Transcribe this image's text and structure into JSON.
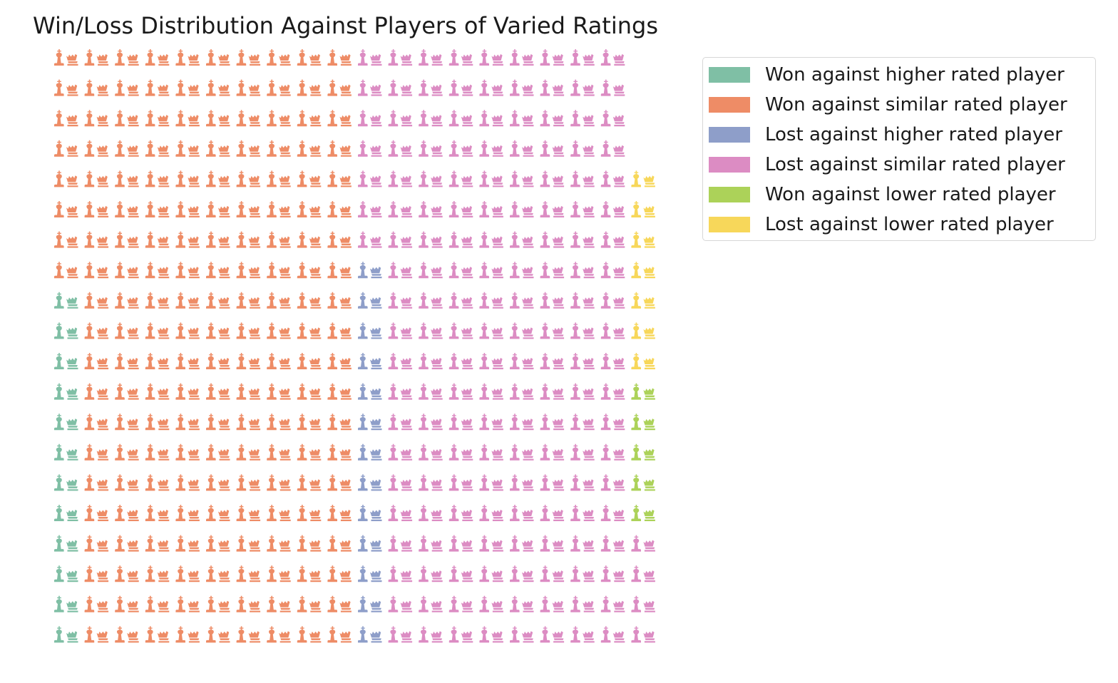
{
  "chart_data": {
    "type": "waffle",
    "title": "Win/Loss Distribution Against Players of Varied Ratings",
    "rows": 20,
    "columns": 20,
    "icon": "chess-king-and-queen-icon",
    "series": [
      {
        "name": "Won against higher rated player",
        "count": 12,
        "color": "#7fbfa5"
      },
      {
        "name": "Won against similar rated player",
        "count": 188,
        "color": "#ee8c66"
      },
      {
        "name": "Lost against higher rated player",
        "count": 13,
        "color": "#8e9ec9"
      },
      {
        "name": "Lost against similar rated player",
        "count": 171,
        "color": "#dc8cc3"
      },
      {
        "name": "Won against lower rated player",
        "count": 5,
        "color": "#acd259"
      },
      {
        "name": "Lost against lower rated player",
        "count": 7,
        "color": "#f7d75a"
      }
    ],
    "fill_order": "column-wise from bottom-left",
    "legend_position": "upper right outside"
  }
}
